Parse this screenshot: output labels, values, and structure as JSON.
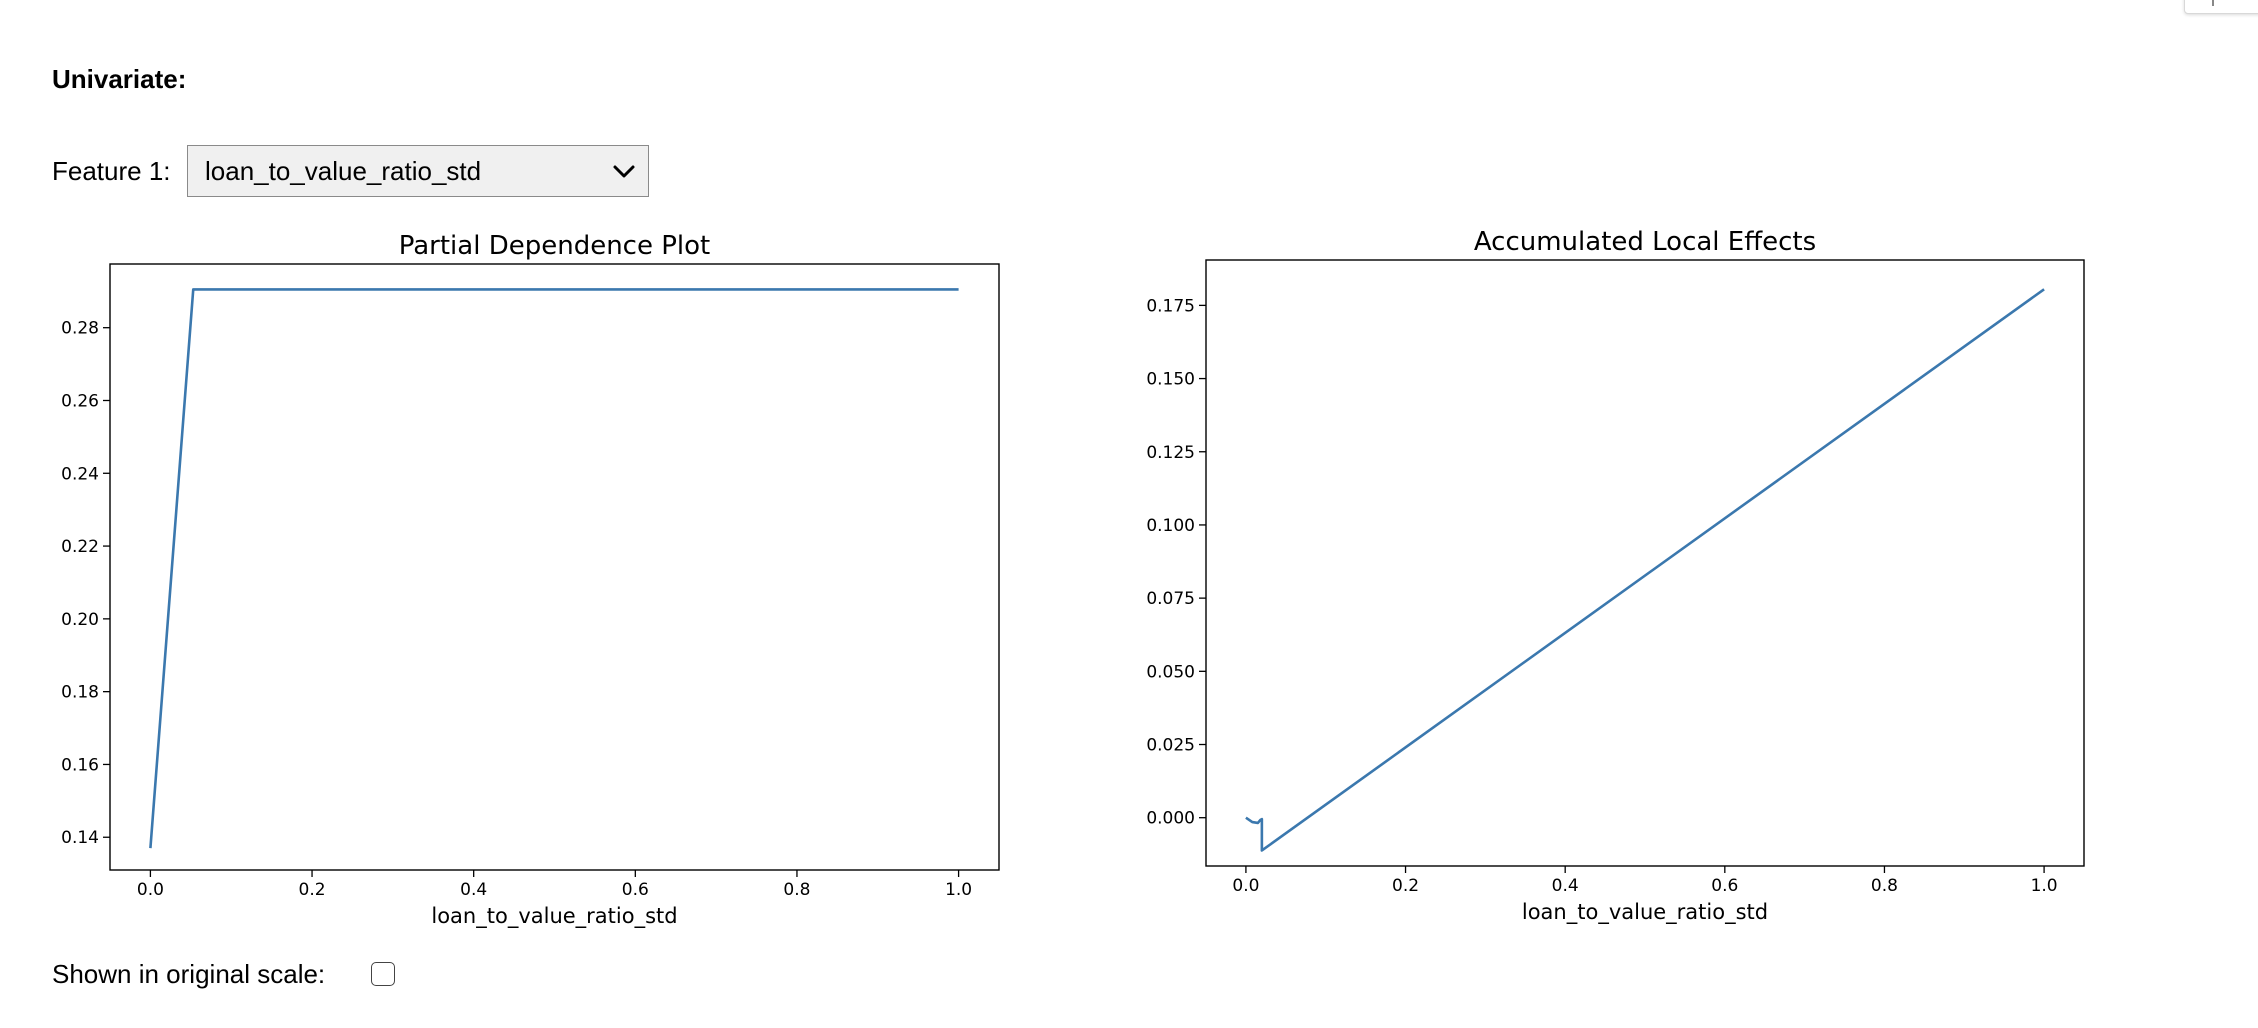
{
  "section_title": "Univariate:",
  "feature1": {
    "label": "Feature 1:",
    "selected": "loan_to_value_ratio_std"
  },
  "scale_toggle": {
    "label": "Shown in original scale:",
    "checked": false
  },
  "colors": {
    "line": "#3b78ae",
    "axes": "#000000"
  },
  "icons": {
    "dropdown": "chevron-down-icon"
  },
  "chart_data": [
    {
      "type": "line",
      "title": "Partial Dependence Plot",
      "xlabel": "loan_to_value_ratio_std",
      "ylabel": "",
      "xlim": [
        -0.05,
        1.05
      ],
      "ylim": [
        0.131,
        0.2975
      ],
      "xticks": [
        0.0,
        0.2,
        0.4,
        0.6,
        0.8,
        1.0
      ],
      "xtick_labels": [
        "0.0",
        "0.2",
        "0.4",
        "0.6",
        "0.8",
        "1.0"
      ],
      "yticks": [
        0.14,
        0.16,
        0.18,
        0.2,
        0.22,
        0.24,
        0.26,
        0.28
      ],
      "ytick_labels": [
        "0.14",
        "0.16",
        "0.18",
        "0.20",
        "0.22",
        "0.24",
        "0.26",
        "0.28"
      ],
      "grid": false,
      "series": [
        {
          "x": [
            0.0,
            0.053,
            1.0
          ],
          "y": [
            0.137,
            0.2905,
            0.2905
          ]
        }
      ]
    },
    {
      "type": "line",
      "title": "Accumulated Local Effects",
      "xlabel": "loan_to_value_ratio_std",
      "ylabel": "",
      "xlim": [
        -0.05,
        1.05
      ],
      "ylim": [
        -0.0165,
        0.1905
      ],
      "xticks": [
        0.0,
        0.2,
        0.4,
        0.6,
        0.8,
        1.0
      ],
      "xtick_labels": [
        "0.0",
        "0.2",
        "0.4",
        "0.6",
        "0.8",
        "1.0"
      ],
      "yticks": [
        0.0,
        0.025,
        0.05,
        0.075,
        0.1,
        0.125,
        0.15,
        0.175
      ],
      "ytick_labels": [
        "0.000",
        "0.025",
        "0.050",
        "0.075",
        "0.100",
        "0.125",
        "0.150",
        "0.175"
      ],
      "grid": false,
      "series": [
        {
          "x": [
            0.0,
            0.008,
            0.015,
            0.018,
            0.02,
            0.02,
            1.0
          ],
          "y": [
            0.0,
            -0.0015,
            -0.0018,
            -0.0008,
            -0.0005,
            -0.0112,
            0.1805
          ]
        }
      ]
    }
  ]
}
